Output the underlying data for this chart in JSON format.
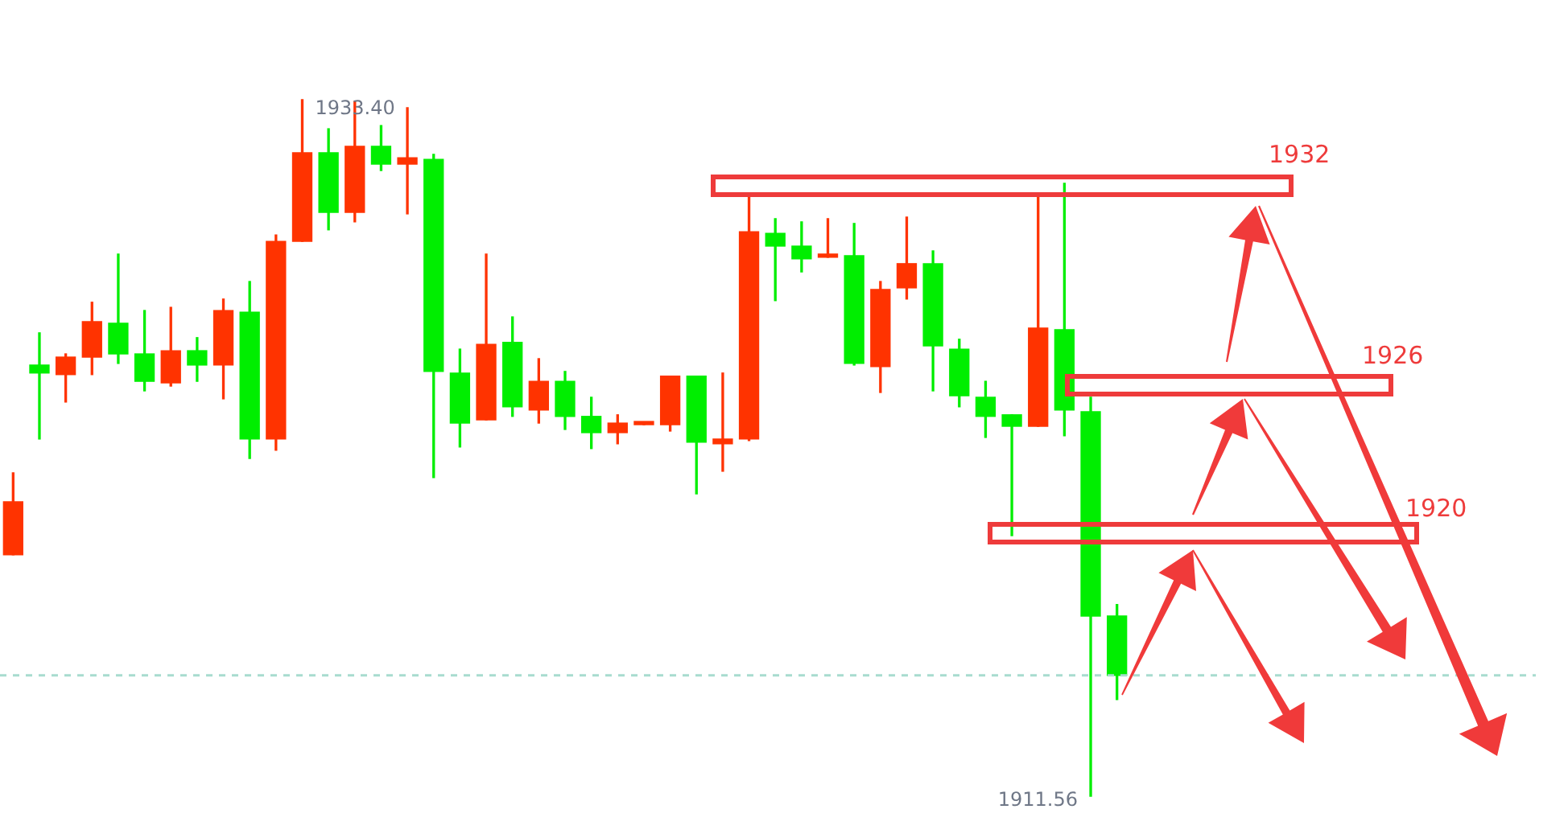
{
  "chart_data": {
    "type": "candlestick",
    "categories": [
      null,
      null,
      null,
      null,
      null,
      null,
      null,
      null,
      null,
      null,
      null,
      null,
      null,
      null,
      null,
      null,
      null,
      null,
      null,
      null,
      null,
      null,
      null,
      null,
      null,
      null,
      null,
      null,
      null,
      null,
      null,
      null,
      null,
      null,
      null,
      null,
      null,
      null,
      null,
      null,
      null,
      null,
      null
    ],
    "ohlc": [
      [
        1919.13,
        1921.7,
        1919.13,
        1920.79
      ],
      [
        1925.08,
        1926.09,
        1922.76,
        1924.83
      ],
      [
        1924.78,
        1925.43,
        1923.92,
        1925.33
      ],
      [
        1925.33,
        1927.05,
        1924.78,
        1926.44
      ],
      [
        1926.39,
        1928.56,
        1925.13,
        1925.43
      ],
      [
        1925.43,
        1926.79,
        1924.27,
        1924.57
      ],
      [
        1924.52,
        1926.89,
        1924.42,
        1925.53
      ],
      [
        1925.53,
        1925.94,
        1924.57,
        1925.08
      ],
      [
        1925.08,
        1927.15,
        1924.02,
        1926.79
      ],
      [
        1926.74,
        1927.7,
        1922.15,
        1922.76
      ],
      [
        1922.76,
        1929.16,
        1922.41,
        1928.96
      ],
      [
        1928.96,
        1933.4,
        1928.96,
        1931.74
      ],
      [
        1931.74,
        1932.49,
        1929.32,
        1929.87
      ],
      [
        1929.87,
        1933.35,
        1929.57,
        1931.94
      ],
      [
        1931.94,
        1932.59,
        1931.18,
        1931.38
      ],
      [
        1931.38,
        1933.15,
        1929.82,
        1931.58
      ],
      [
        1931.53,
        1931.69,
        1921.55,
        1924.88
      ],
      [
        1924.83,
        1925.58,
        1922.51,
        1923.26
      ],
      [
        1923.36,
        1928.56,
        1923.36,
        1925.73
      ],
      [
        1925.79,
        1926.59,
        1923.47,
        1923.77
      ],
      [
        1923.67,
        1925.28,
        1923.26,
        1924.57
      ],
      [
        1924.57,
        1924.88,
        1923.06,
        1923.47
      ],
      [
        1923.47,
        1924.07,
        1922.46,
        1922.96
      ],
      [
        1922.96,
        1923.52,
        1922.61,
        1923.26
      ],
      [
        1923.21,
        1923.26,
        1923.21,
        1923.26
      ],
      [
        1923.21,
        1924.73,
        1923.01,
        1924.73
      ],
      [
        1924.73,
        1924.73,
        1921.04,
        1922.66
      ],
      [
        1922.61,
        1924.83,
        1921.75,
        1922.76
      ],
      [
        1922.76,
        1930.37,
        1922.71,
        1929.26
      ],
      [
        1929.21,
        1929.67,
        1927.1,
        1928.81
      ],
      [
        1928.81,
        1929.57,
        1928.0,
        1928.41
      ],
      [
        1928.46,
        1929.67,
        1928.46,
        1928.51
      ],
      [
        1928.51,
        1929.52,
        1925.08,
        1925.13
      ],
      [
        1925.03,
        1927.7,
        1924.22,
        1927.45
      ],
      [
        1927.5,
        1929.72,
        1927.15,
        1928.26
      ],
      [
        1928.26,
        1928.66,
        1924.27,
        1925.68
      ],
      [
        1925.58,
        1925.89,
        1923.77,
        1924.12
      ],
      [
        1924.07,
        1924.57,
        1922.81,
        1923.47
      ],
      [
        1923.52,
        1923.52,
        1919.73,
        1923.16
      ],
      [
        1923.16,
        1930.37,
        1923.16,
        1926.24
      ],
      [
        1926.19,
        1930.78,
        1922.86,
        1923.67
      ],
      [
        1923.62,
        1924.07,
        1911.56,
        1917.21
      ],
      [
        1917.21,
        1917.57,
        1914.59,
        1915.35
      ]
    ],
    "colors": [
      "#ff3300",
      "#00ee00",
      "#ff3300",
      "#ff3300",
      "#00ee00",
      "#00ee00",
      "#ff3300",
      "#00ee00",
      "#ff3300",
      "#00ee00",
      "#ff3300",
      "#ff3300",
      "#00ee00",
      "#ff3300",
      "#00ee00",
      "#ff3300",
      "#00ee00",
      "#00ee00",
      "#ff3300",
      "#00ee00",
      "#ff3300",
      "#00ee00",
      "#00ee00",
      "#ff3300",
      "#ff3300",
      "#ff3300",
      "#00ee00",
      "#ff3300",
      "#ff3300",
      "#00ee00",
      "#00ee00",
      "#ff3300",
      "#00ee00",
      "#ff3300",
      "#ff3300",
      "#00ee00",
      "#00ee00",
      "#00ee00",
      "#00ee00",
      "#ff3300",
      "#00ee00",
      "#00ee00",
      "#00ee00"
    ],
    "annotations": [
      "1933.40",
      "1911.56",
      "1932",
      "1926",
      "1920"
    ],
    "ref_lines": [
      {
        "axis": "y",
        "value": 1915.35,
        "color": "#a8dccf"
      }
    ]
  }
}
